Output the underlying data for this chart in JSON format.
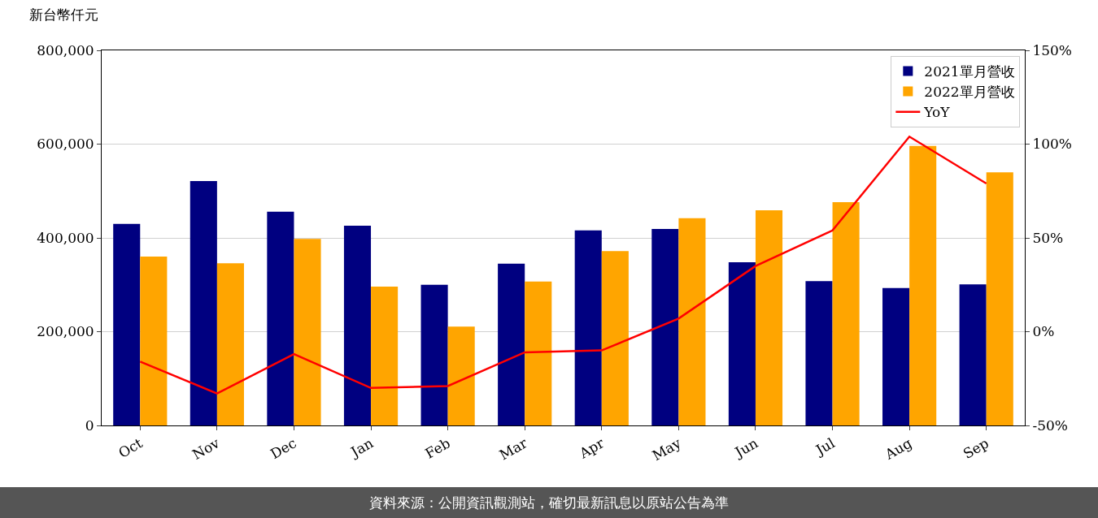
{
  "chart_data": {
    "type": "bar",
    "ylabel": "新台幣仟元",
    "categories": [
      "Oct",
      "Nov",
      "Dec",
      "Jan",
      "Feb",
      "Mar",
      "Apr",
      "May",
      "Jun",
      "Jul",
      "Aug",
      "Sep"
    ],
    "series": [
      {
        "name": "2021單月營收",
        "color": "#000080",
        "values": [
          430000,
          521000,
          456000,
          426000,
          300000,
          345000,
          416000,
          419000,
          348000,
          308000,
          293000,
          301000
        ]
      },
      {
        "name": "2022單月營收",
        "color": "#ffa500",
        "values": [
          360000,
          346000,
          398000,
          296000,
          211000,
          307000,
          372000,
          442000,
          459000,
          476000,
          596000,
          540000
        ]
      },
      {
        "name": "YoY",
        "type": "line",
        "axis": "y2",
        "color": "#ff0000",
        "marker": "none",
        "values": [
          -16,
          -33,
          -12,
          -30,
          -29,
          -11,
          -10,
          7,
          35,
          54,
          104,
          79
        ]
      }
    ],
    "ylim": [
      0,
      800000
    ],
    "yticks": [
      0,
      {
        "value": 200000,
        "label": "200,000"
      },
      {
        "value": 400000,
        "label": "400,000"
      },
      {
        "value": 600000,
        "label": "600,000"
      },
      {
        "value": 800000,
        "label": "800,000"
      }
    ],
    "y2lim": [
      -50,
      150
    ],
    "y2ticks": [
      {
        "value": -50,
        "label": "-50%"
      },
      {
        "value": 0,
        "label": "0%"
      },
      {
        "value": 50,
        "label": "50%"
      },
      {
        "value": 100,
        "label": "100%"
      },
      {
        "value": 150,
        "label": "150%"
      }
    ],
    "grid": "y",
    "legend": "top right",
    "annotations": [
      "資料來源：公開資訊觀測站，確切最新訊息以原站公告為準"
    ]
  }
}
